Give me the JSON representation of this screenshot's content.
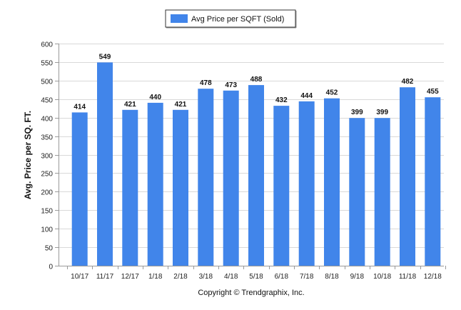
{
  "chart_data": {
    "type": "bar",
    "categories": [
      "10/17",
      "11/17",
      "12/17",
      "1/18",
      "2/18",
      "3/18",
      "4/18",
      "5/18",
      "6/18",
      "7/18",
      "8/18",
      "9/18",
      "10/18",
      "11/18",
      "12/18"
    ],
    "series": [
      {
        "name": "Avg Price per SQFT (Sold)",
        "values": [
          414,
          549,
          421,
          440,
          421,
          478,
          473,
          488,
          432,
          444,
          452,
          399,
          399,
          482,
          455
        ],
        "color": "#4185ea"
      }
    ],
    "ylabel": "Avg. Price per SQ. FT.",
    "xlabel": "",
    "ylim": [
      0,
      600
    ],
    "yticks": [
      0,
      50,
      100,
      150,
      200,
      250,
      300,
      350,
      400,
      450,
      500,
      550,
      600
    ],
    "grid": true,
    "legend_position": "top-center",
    "data_labels": true,
    "colors": {
      "bar": "#4185ea",
      "grid": "#d9d9d9",
      "axis": "#9a9a9a"
    }
  },
  "footer": {
    "copyright": "Copyright © Trendgraphix, Inc."
  }
}
